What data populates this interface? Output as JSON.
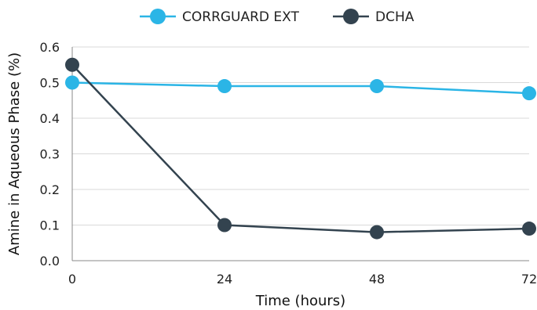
{
  "chart_data": {
    "type": "line",
    "title": "",
    "xlabel": "Time (hours)",
    "ylabel": "Amine in Aqueous Phase (%)",
    "x": [
      0,
      24,
      48,
      72
    ],
    "xticks": [
      "0",
      "24",
      "48",
      "72"
    ],
    "ylim": [
      0,
      0.6
    ],
    "yticks": [
      "0.0",
      "0.1",
      "0.2",
      "0.3",
      "0.4",
      "0.5",
      "0.6"
    ],
    "grid": true,
    "legend_position": "top-center",
    "series": [
      {
        "name": "CORRGUARD EXT",
        "color": "#2bb5e6",
        "values": [
          0.5,
          0.49,
          0.49,
          0.47
        ]
      },
      {
        "name": "DCHA",
        "color": "#33434f",
        "values": [
          0.55,
          0.1,
          0.08,
          0.09
        ]
      }
    ]
  }
}
